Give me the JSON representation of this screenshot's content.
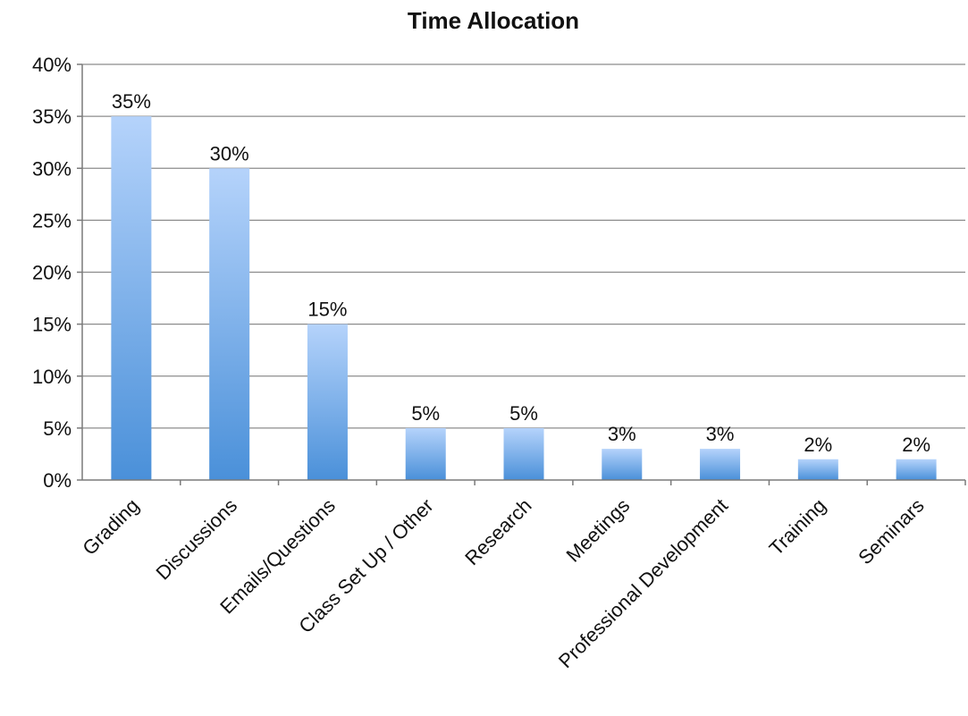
{
  "chart_data": {
    "type": "bar",
    "title": "Time Allocation",
    "xlabel": "",
    "ylabel": "",
    "categories": [
      "Grading",
      "Discussions",
      "Emails/Questions",
      "Class Set Up / Other",
      "Research",
      "Meetings",
      "Professional Development",
      "Training",
      "Seminars"
    ],
    "values": [
      35,
      30,
      15,
      5,
      5,
      3,
      3,
      2,
      2
    ],
    "data_labels": [
      "35%",
      "30%",
      "15%",
      "5%",
      "5%",
      "3%",
      "3%",
      "2%",
      "2%"
    ],
    "ylim": [
      0,
      40
    ],
    "yticks": [
      0,
      5,
      10,
      15,
      20,
      25,
      30,
      35,
      40
    ],
    "ytick_labels": [
      "0%",
      "5%",
      "10%",
      "15%",
      "20%",
      "25%",
      "30%",
      "35%",
      "40%"
    ],
    "grid": true,
    "legend": "none",
    "colors": {
      "bar_top": "#b5d3fb",
      "bar_bottom": "#4a90d9",
      "grid": "#8c8c8c",
      "axis": "#7a7a7a",
      "text": "#111111"
    }
  }
}
